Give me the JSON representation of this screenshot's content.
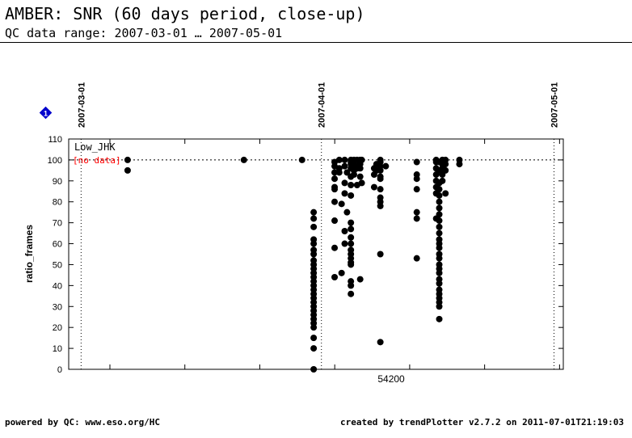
{
  "header": {
    "title": "AMBER: SNR (60 days period, close-up)",
    "subtitle": "QC data range: 2007-03-01 … 2007-05-01"
  },
  "footer": {
    "left": "powered by QC: www.eso.org/HC",
    "right": "created by trendPlotter v2.7.2 on 2011-07-01T21:19:03"
  },
  "info_badge": {
    "label": "1",
    "color": "#0000cc",
    "icon": "info-diamond-icon"
  },
  "chart_data": {
    "type": "scatter",
    "ylabel": "ratio_frames",
    "xlabel": "",
    "x_axis": "MJD",
    "xlim": [
      54158.4,
      54222.2
    ],
    "ylim": [
      0,
      110
    ],
    "yticks": [
      0,
      10,
      20,
      30,
      40,
      50,
      60,
      70,
      80,
      90,
      100,
      110
    ],
    "xtick_labels": [
      {
        "value": 54200,
        "label": "54200"
      }
    ],
    "date_markers": [
      {
        "value": 54160.0,
        "label": "2007-03-01"
      },
      {
        "value": 54191.0,
        "label": "2007-04-01"
      },
      {
        "value": 54221.0,
        "label": "2007-05-01"
      }
    ],
    "reference_line": 100,
    "legend": {
      "label": "Low_JHK",
      "note": "[no data]",
      "note_color": "#ff0000",
      "position": "top-left"
    },
    "marker_color": "#000000",
    "series": [
      {
        "points": [
          [
            54166.0,
            100
          ],
          [
            54166.0,
            95
          ],
          [
            54181.0,
            100
          ],
          [
            54188.5,
            100
          ],
          [
            54190.0,
            75
          ],
          [
            54190.0,
            72
          ],
          [
            54190.0,
            68
          ],
          [
            54190.0,
            62
          ],
          [
            54190.0,
            60
          ],
          [
            54190.0,
            57
          ],
          [
            54190.0,
            55
          ],
          [
            54190.0,
            52
          ],
          [
            54190.0,
            50
          ],
          [
            54190.0,
            48
          ],
          [
            54190.0,
            46
          ],
          [
            54190.0,
            44
          ],
          [
            54190.0,
            42
          ],
          [
            54190.0,
            40
          ],
          [
            54190.0,
            38
          ],
          [
            54190.0,
            36
          ],
          [
            54190.0,
            34
          ],
          [
            54190.0,
            32
          ],
          [
            54190.0,
            30
          ],
          [
            54190.0,
            28
          ],
          [
            54190.0,
            26
          ],
          [
            54190.0,
            24
          ],
          [
            54190.0,
            22
          ],
          [
            54190.0,
            20
          ],
          [
            54190.0,
            15
          ],
          [
            54190.0,
            10
          ],
          [
            54190.0,
            0
          ],
          [
            54192.7,
            99
          ],
          [
            54192.7,
            97
          ],
          [
            54192.7,
            94
          ],
          [
            54192.7,
            91
          ],
          [
            54192.7,
            87
          ],
          [
            54192.7,
            86
          ],
          [
            54192.7,
            80
          ],
          [
            54192.7,
            71
          ],
          [
            54192.7,
            58
          ],
          [
            54192.7,
            44
          ],
          [
            54193.3,
            100
          ],
          [
            54193.3,
            96
          ],
          [
            54193.3,
            94
          ],
          [
            54193.6,
            79
          ],
          [
            54193.6,
            46
          ],
          [
            54194.0,
            100
          ],
          [
            54194.0,
            97
          ],
          [
            54194.0,
            89
          ],
          [
            54194.0,
            84
          ],
          [
            54194.0,
            66
          ],
          [
            54194.0,
            60
          ],
          [
            54194.3,
            94
          ],
          [
            54194.3,
            75
          ],
          [
            54194.8,
            100
          ],
          [
            54194.8,
            99
          ],
          [
            54194.8,
            98
          ],
          [
            54194.8,
            96
          ],
          [
            54194.8,
            92
          ],
          [
            54194.8,
            88
          ],
          [
            54194.8,
            83
          ],
          [
            54194.8,
            70
          ],
          [
            54194.8,
            67
          ],
          [
            54194.8,
            63
          ],
          [
            54194.8,
            60
          ],
          [
            54194.8,
            57
          ],
          [
            54194.8,
            55
          ],
          [
            54194.8,
            53
          ],
          [
            54194.8,
            51
          ],
          [
            54194.8,
            50
          ],
          [
            54194.8,
            42
          ],
          [
            54194.8,
            40
          ],
          [
            54194.8,
            36
          ],
          [
            54195.2,
            100
          ],
          [
            54195.2,
            98
          ],
          [
            54195.2,
            95
          ],
          [
            54195.2,
            93
          ],
          [
            54195.6,
            100
          ],
          [
            54195.6,
            97
          ],
          [
            54195.6,
            88
          ],
          [
            54195.6,
            96
          ],
          [
            54196.0,
            100
          ],
          [
            54196.0,
            98
          ],
          [
            54196.0,
            96
          ],
          [
            54196.0,
            92
          ],
          [
            54196.0,
            43
          ],
          [
            54196.2,
            100
          ],
          [
            54196.2,
            89
          ],
          [
            54197.8,
            96
          ],
          [
            54197.8,
            93
          ],
          [
            54197.8,
            87
          ],
          [
            54198.1,
            98
          ],
          [
            54198.1,
            95
          ],
          [
            54198.6,
            100
          ],
          [
            54198.6,
            99
          ],
          [
            54198.6,
            97
          ],
          [
            54198.6,
            95
          ],
          [
            54198.6,
            92
          ],
          [
            54198.6,
            91
          ],
          [
            54198.6,
            86
          ],
          [
            54198.6,
            82
          ],
          [
            54198.6,
            80
          ],
          [
            54198.6,
            78
          ],
          [
            54198.6,
            55
          ],
          [
            54198.6,
            13
          ],
          [
            54199.3,
            97
          ],
          [
            54203.3,
            99
          ],
          [
            54203.3,
            93
          ],
          [
            54203.3,
            91
          ],
          [
            54203.3,
            86
          ],
          [
            54203.3,
            75
          ],
          [
            54203.3,
            72
          ],
          [
            54203.3,
            53
          ],
          [
            54205.8,
            100
          ],
          [
            54205.8,
            99
          ],
          [
            54205.8,
            96
          ],
          [
            54205.8,
            93
          ],
          [
            54205.8,
            90
          ],
          [
            54205.8,
            87
          ],
          [
            54205.8,
            84
          ],
          [
            54205.8,
            72
          ],
          [
            54206.2,
            99
          ],
          [
            54206.2,
            95
          ],
          [
            54206.2,
            89
          ],
          [
            54206.2,
            86
          ],
          [
            54206.2,
            83
          ],
          [
            54206.2,
            80
          ],
          [
            54206.2,
            77
          ],
          [
            54206.2,
            74
          ],
          [
            54206.2,
            71
          ],
          [
            54206.2,
            68
          ],
          [
            54206.2,
            65
          ],
          [
            54206.2,
            62
          ],
          [
            54206.2,
            60
          ],
          [
            54206.2,
            58
          ],
          [
            54206.2,
            55
          ],
          [
            54206.2,
            53
          ],
          [
            54206.2,
            50
          ],
          [
            54206.2,
            48
          ],
          [
            54206.2,
            46
          ],
          [
            54206.2,
            43
          ],
          [
            54206.2,
            41
          ],
          [
            54206.2,
            38
          ],
          [
            54206.2,
            36
          ],
          [
            54206.2,
            34
          ],
          [
            54206.2,
            32
          ],
          [
            54206.2,
            30
          ],
          [
            54206.2,
            24
          ],
          [
            54206.6,
            100
          ],
          [
            54206.6,
            98
          ],
          [
            54206.6,
            96
          ],
          [
            54206.6,
            93
          ],
          [
            54206.6,
            90
          ],
          [
            54207.0,
            100
          ],
          [
            54207.0,
            98
          ],
          [
            54207.0,
            95
          ],
          [
            54207.0,
            84
          ],
          [
            54208.8,
            100
          ],
          [
            54208.8,
            98
          ]
        ]
      }
    ]
  }
}
